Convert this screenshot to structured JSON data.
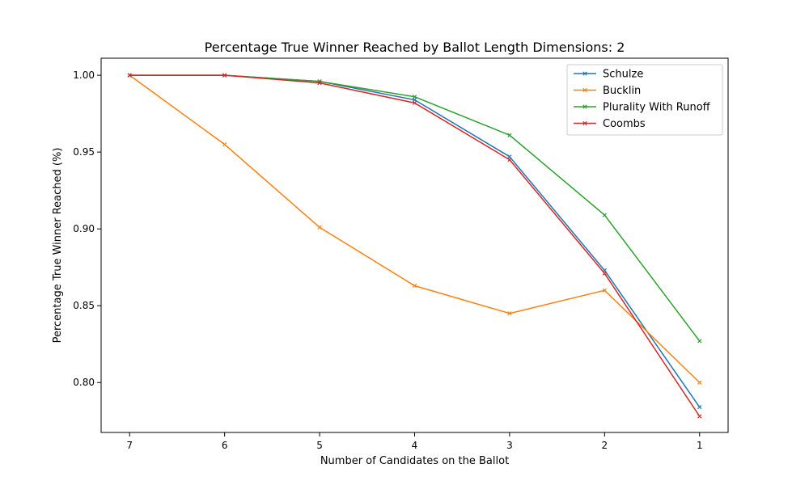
{
  "chart_data": {
    "type": "line",
    "title": "Percentage True Winner Reached by Ballot Length Dimensions: 2",
    "xlabel": "Number of Candidates on the Ballot",
    "ylabel": "Percentage True Winner Reached (%)",
    "x": [
      7,
      6,
      5,
      4,
      3,
      2,
      1
    ],
    "x_tick_labels": [
      "7",
      "6",
      "5",
      "4",
      "3",
      "2",
      "1"
    ],
    "xlim": [
      7.3,
      0.7
    ],
    "ylim": [
      0.7675,
      1.0111
    ],
    "y_ticks": [
      0.8,
      0.85,
      0.9,
      0.95,
      1.0
    ],
    "y_tick_labels": [
      "0.80",
      "0.85",
      "0.90",
      "0.95",
      "1.00"
    ],
    "grid": false,
    "legend_position": "top-right",
    "marker": "x",
    "series": [
      {
        "name": "Schulze",
        "color": "#1f77b4",
        "values": [
          1.0,
          1.0,
          0.996,
          0.984,
          0.947,
          0.873,
          0.784
        ]
      },
      {
        "name": "Bucklin",
        "color": "#ff7f0e",
        "values": [
          1.0,
          0.955,
          0.901,
          0.863,
          0.845,
          0.86,
          0.8
        ]
      },
      {
        "name": "Plurality With Runoff",
        "color": "#2ca02c",
        "values": [
          1.0,
          1.0,
          0.996,
          0.986,
          0.961,
          0.909,
          0.827
        ]
      },
      {
        "name": "Coombs",
        "color": "#d62728",
        "values": [
          1.0,
          1.0,
          0.995,
          0.982,
          0.945,
          0.871,
          0.778
        ]
      }
    ]
  }
}
